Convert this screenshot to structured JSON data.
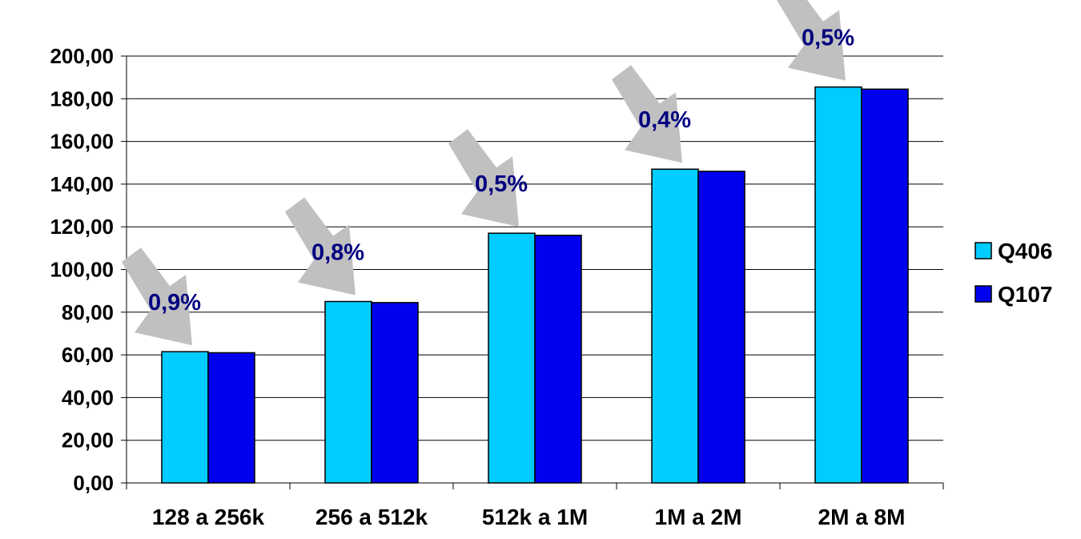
{
  "chart_data": {
    "type": "bar",
    "categories": [
      "128 a 256k",
      "256 a 512k",
      "512k a 1M",
      "1M a 2M",
      "2M a 8M"
    ],
    "series": [
      {
        "name": "Q406",
        "color": "#00ccff",
        "values": [
          61.5,
          85.0,
          117.0,
          147.0,
          185.5
        ]
      },
      {
        "name": "Q107",
        "color": "#0000ee",
        "values": [
          61.0,
          84.5,
          116.0,
          146.0,
          184.5
        ]
      }
    ],
    "ylim": [
      0,
      200
    ],
    "yticks": [
      0,
      20,
      40,
      60,
      80,
      100,
      120,
      140,
      160,
      180,
      200
    ],
    "ytick_labels": [
      "0,00",
      "20,00",
      "40,00",
      "60,00",
      "80,00",
      "100,00",
      "120,00",
      "140,00",
      "160,00",
      "180,00",
      "200,00"
    ],
    "grid": true,
    "legend": "right",
    "annotations": [
      "0,9%",
      "0,8%",
      "0,5%",
      "0,4%",
      "0,5%"
    ],
    "annotation_arrow_color": "#c0c0c0"
  }
}
